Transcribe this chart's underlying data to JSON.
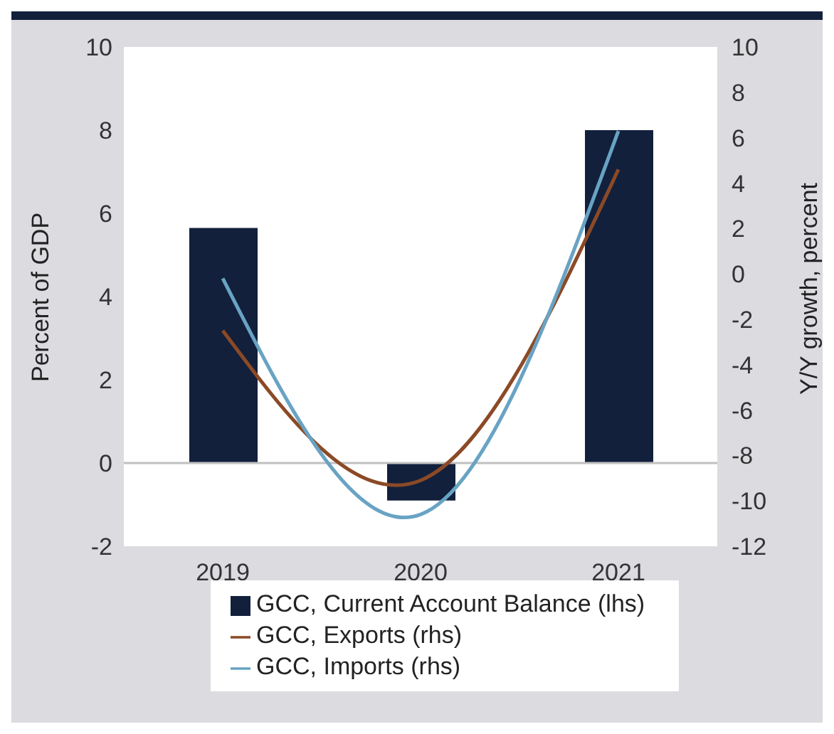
{
  "chart_data": {
    "type": "bar",
    "ylabel": "Percent of GDP",
    "y2label": "Y/Y growth, percent",
    "categories": [
      "2019",
      "2020",
      "2021"
    ],
    "series": [
      {
        "name": "GCC, Current Account Balance (lhs)",
        "color": "#12203c",
        "values": [
          5.65,
          -0.9,
          8.0
        ]
      },
      {
        "name": "GCC, Exports (rhs)",
        "type": "line",
        "axis": "y2",
        "color": "#8b4a26",
        "values": [
          -2.5,
          -9.1,
          4.6
        ]
      },
      {
        "name": "GCC, Imports (rhs)",
        "type": "line",
        "axis": "y2",
        "color": "#69a3c4",
        "values": [
          -0.2,
          -10.6,
          6.3
        ]
      }
    ],
    "ylim": [
      -2,
      10
    ],
    "yticks": [
      -2,
      0,
      2,
      4,
      6,
      8,
      10
    ],
    "y2lim": [
      -12,
      10
    ],
    "y2ticks": [
      -12,
      -10,
      -8,
      -6,
      -4,
      -2,
      0,
      2,
      4,
      6,
      8,
      10
    ],
    "ref_lines": [
      {
        "axis": "y",
        "value": 0,
        "color": "#c0c0c0"
      }
    ],
    "legend": "bottom",
    "grid": false,
    "marker": "none",
    "line_style": "solid"
  }
}
